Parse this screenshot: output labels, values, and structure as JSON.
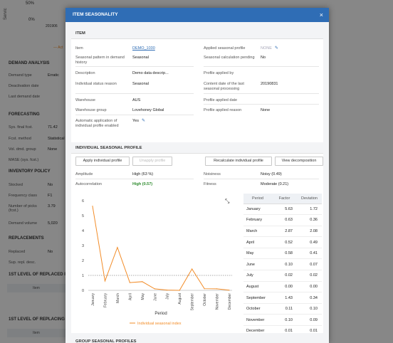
{
  "background": {
    "chart": {
      "ylabel": "Servic",
      "tick_50": "50%",
      "tick_0": "0%",
      "xtick": "201906",
      "legend": "— Act"
    },
    "sections": [
      {
        "key": "demand_analysis",
        "title": "DEMAND ANALYSIS"
      },
      {
        "key": "forecasting",
        "title": "FORECASTING"
      },
      {
        "key": "inventory_policy",
        "title": "INVENTORY POLICY"
      },
      {
        "key": "replacements",
        "title": "REPLACEMENTS"
      },
      {
        "key": "first_replaced",
        "title": "1ST LEVEL OF REPLACED ITEM"
      },
      {
        "key": "first_replacing",
        "title": "1ST LEVEL OF REPLACING ITE"
      }
    ],
    "rows": {
      "demand_type": {
        "label": "Demand type",
        "value": "Erratic"
      },
      "deactivation_date": {
        "label": "Deactivation date",
        "value": ""
      },
      "last_demand_date": {
        "label": "Last demand date",
        "value": ""
      },
      "sys_final_fcst": {
        "label": "Sys. final fcst.",
        "value": "71.42"
      },
      "fcst_method": {
        "label": "Fcst. method",
        "value": "Statistical"
      },
      "vol_dmd_group": {
        "label": "Vol. dmd. group",
        "value": "None"
      },
      "mase": {
        "label": "MASE (sys. fcst.)",
        "value": ""
      },
      "stocked": {
        "label": "Stocked",
        "value": "No"
      },
      "frequency_class": {
        "label": "Frequency class",
        "value": "F1"
      },
      "number_of_picks": {
        "label": "Number of picks (fcst.)",
        "value": "3.79"
      },
      "demand_volume": {
        "label": "Demand volume",
        "value": "5,020"
      },
      "replaced": {
        "label": "Replaced",
        "value": "No"
      },
      "sup_repl_desc": {
        "label": "Sup. repl. desc.",
        "value": ""
      }
    },
    "item_col_1": "Item",
    "item_col_2": "Item"
  },
  "modal": {
    "title": "ITEM SEASONALITY",
    "close": "×",
    "item_section": {
      "title": "ITEM",
      "left": [
        {
          "label": "Item",
          "value": "DEMO_1030",
          "style": "link"
        },
        {
          "label": "Seasonal pattern in demand history",
          "value": "Seasonal"
        },
        {
          "label": "Description",
          "value": "Demo data descrip..."
        },
        {
          "label": "Individual status reason",
          "value": "Seasonal"
        },
        {
          "label": "Warehouse",
          "value": "AUS"
        },
        {
          "label": "Warehouse group",
          "value": "Lovehoney Global"
        },
        {
          "label": "Automatic application of individual profile enabled",
          "value": "Yes"
        }
      ],
      "right": [
        {
          "label": "Applied seasonal profile",
          "value": "NONE",
          "style": "muted"
        },
        {
          "label": "Seasonal calculation pending",
          "value": "No"
        },
        {
          "label": "Profile applied by",
          "value": ""
        },
        {
          "label": "Content date of the last seasonal processing",
          "value": "20190831"
        },
        {
          "label": "Profile applied date",
          "value": ""
        },
        {
          "label": "Profile applied reason",
          "value": "None"
        }
      ]
    },
    "individual_section": {
      "title": "INDIVIDUAL SEASONAL PROFILE",
      "buttons": {
        "apply": "Apply individual profile",
        "unapply": "Unapply profile",
        "recalculate": "Recalculate individual profile",
        "decomposition": "View decomposition"
      },
      "stats": {
        "amplitude": {
          "label": "Amplitude",
          "value": "High (63 %)"
        },
        "autocorrelation": {
          "label": "Autocorrelation",
          "value": "High (0.57)"
        },
        "noisiness": {
          "label": "Noisiness",
          "value": "Noisy (0.49)"
        },
        "fitness": {
          "label": "Fitness",
          "value": "Moderate (0.21)"
        }
      },
      "table": {
        "headers": [
          "Period",
          "Factor",
          "Deviation"
        ],
        "rows": [
          [
            "January",
            "5.63",
            "1.72"
          ],
          [
            "February",
            "0.63",
            "0.36"
          ],
          [
            "March",
            "2.87",
            "2.08"
          ],
          [
            "April",
            "0.52",
            "0.49"
          ],
          [
            "May",
            "0.58",
            "0.41"
          ],
          [
            "June",
            "0.10",
            "0.07"
          ],
          [
            "July",
            "0.02",
            "0.02"
          ],
          [
            "August",
            "0.00",
            "0.00"
          ],
          [
            "September",
            "1.43",
            "0.34"
          ],
          [
            "October",
            "0.11",
            "0.10"
          ],
          [
            "November",
            "0.10",
            "0.09"
          ],
          [
            "December",
            "0.01",
            "0.01"
          ]
        ]
      }
    },
    "group_section": {
      "title": "GROUP SEASONAL PROFILES"
    }
  },
  "chart_data": {
    "type": "line",
    "categories": [
      "January",
      "February",
      "March",
      "April",
      "May",
      "June",
      "July",
      "August",
      "September",
      "October",
      "November",
      "December"
    ],
    "series": [
      {
        "name": "Individual seasonal index",
        "values": [
          5.63,
          0.63,
          2.87,
          0.52,
          0.58,
          0.1,
          0.02,
          0.0,
          1.43,
          0.11,
          0.1,
          0.01
        ],
        "color": "#f28c28"
      }
    ],
    "reference_line": 1,
    "xlabel": "Period",
    "ylabel": "",
    "ylim": [
      0,
      6
    ],
    "yticks": [
      "0",
      "1",
      "2",
      "3",
      "4",
      "5",
      "6"
    ],
    "legend": "bottom-center",
    "grid": false
  },
  "colors": {
    "header": "#2f6db5",
    "link": "#2f6db5",
    "series": "#f28c28",
    "ok": "#2e8b2e"
  }
}
